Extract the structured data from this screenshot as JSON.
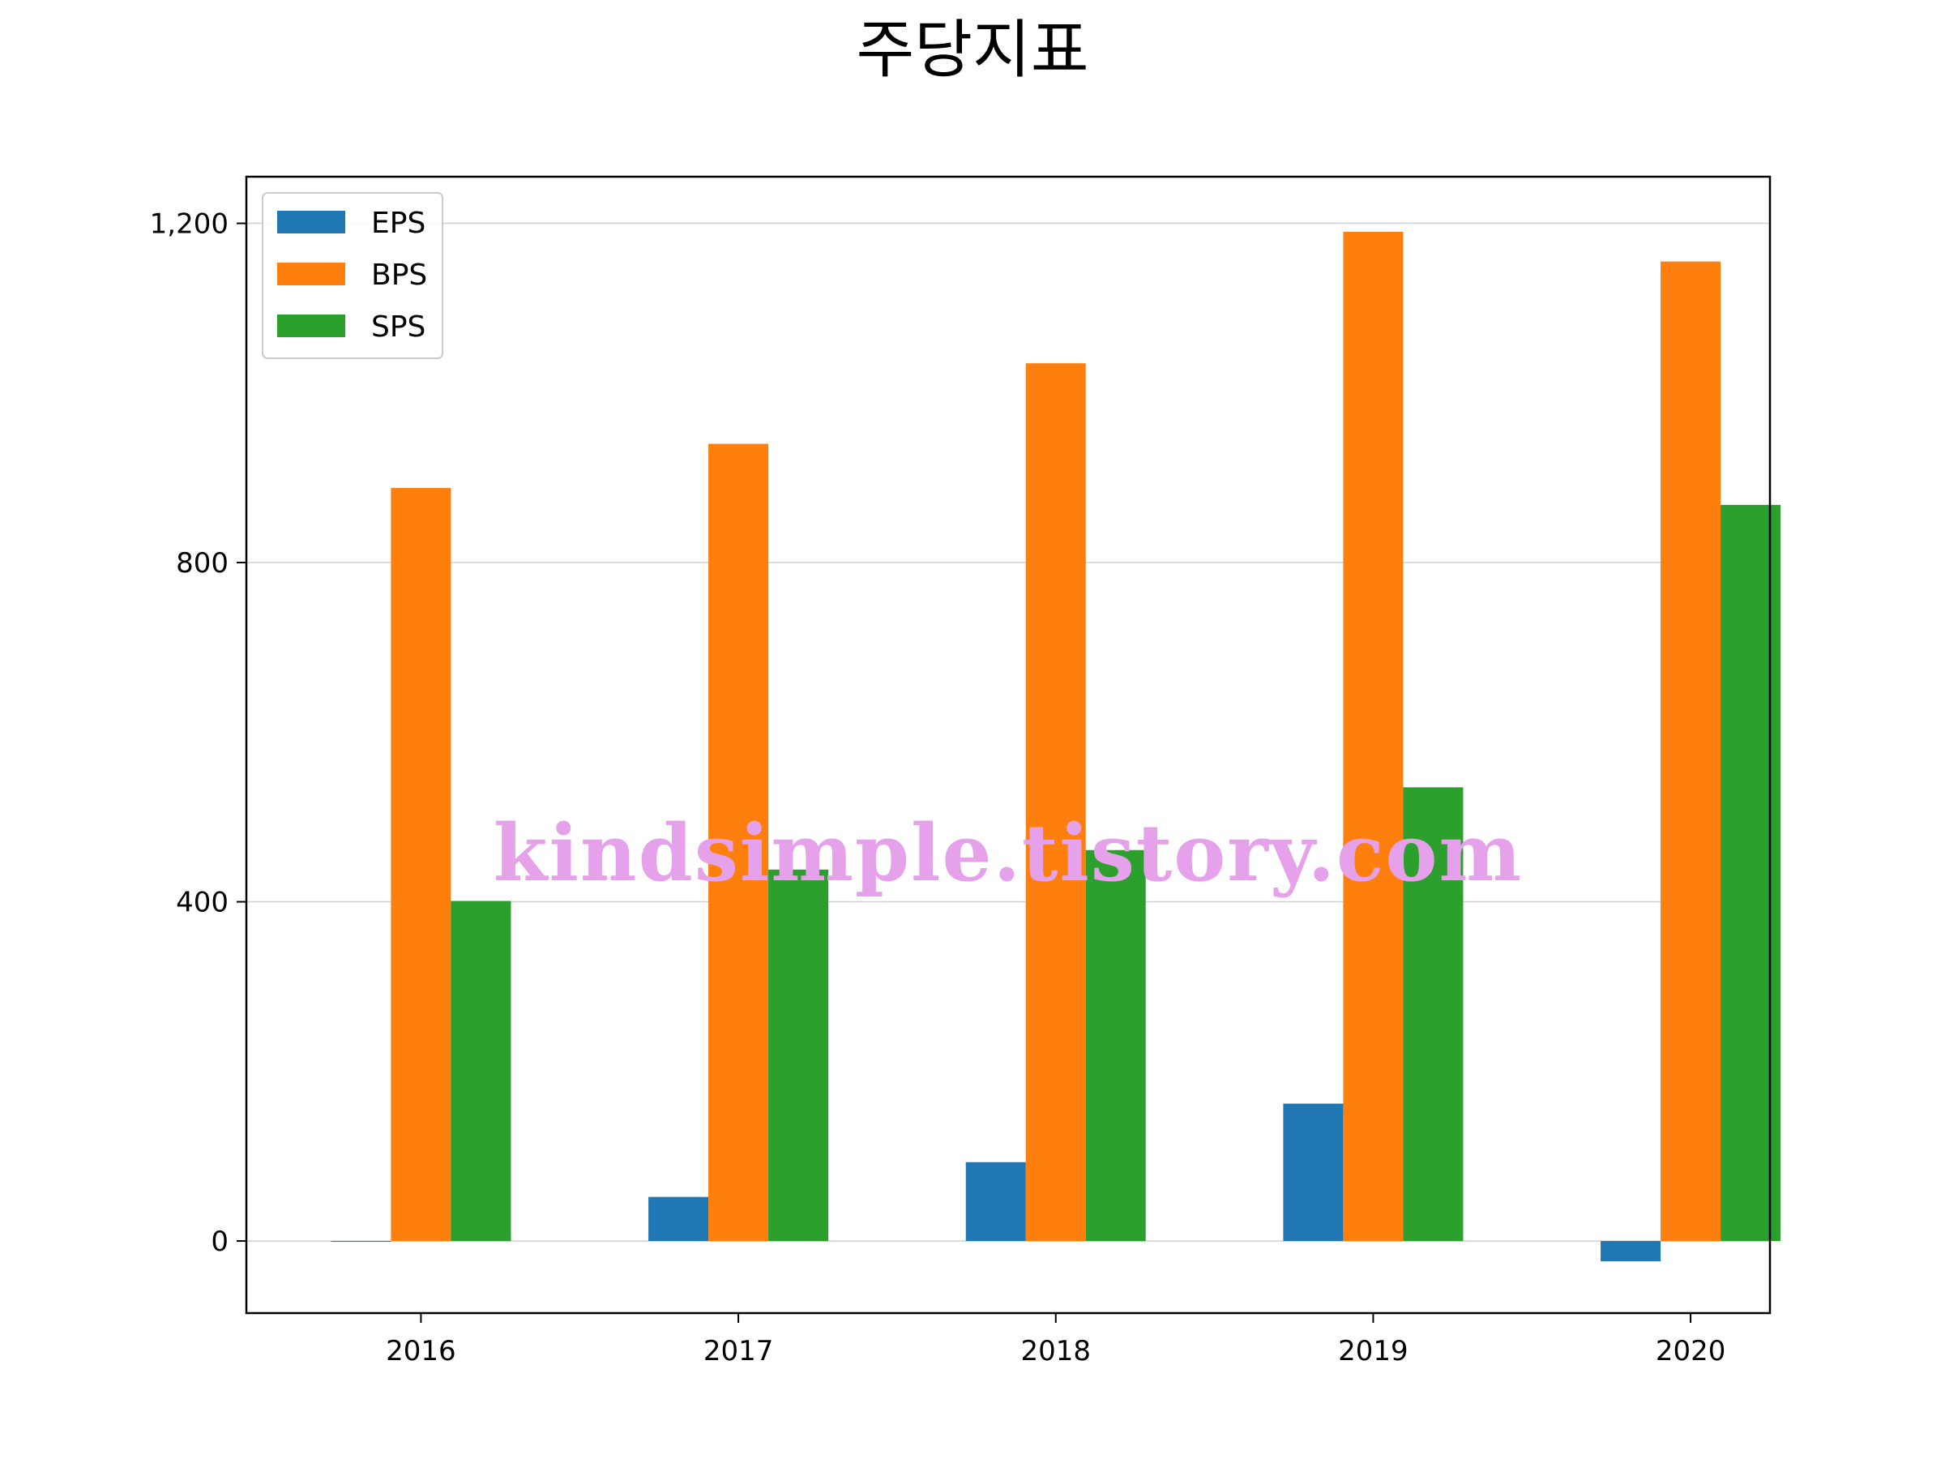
{
  "chart_data": {
    "type": "bar",
    "title": "주당지표",
    "xlabel": "",
    "ylabel": "",
    "categories": [
      "2016",
      "2017",
      "2018",
      "2019",
      "2020"
    ],
    "series": [
      {
        "name": "EPS",
        "color": "#1f77b4",
        "values": [
          0,
          52,
          93,
          162,
          -24
        ]
      },
      {
        "name": "BPS",
        "color": "#ff7f0e",
        "values": [
          888,
          940,
          1035,
          1190,
          1155
        ]
      },
      {
        "name": "SPS",
        "color": "#2ca02c",
        "values": [
          401,
          438,
          461,
          535,
          868
        ]
      }
    ],
    "ylim": [
      -85,
      1255
    ],
    "yticks": [
      0,
      400,
      800,
      1200
    ],
    "ytick_labels": [
      "0",
      "400",
      "800",
      "1,200"
    ],
    "grid": "horizontal",
    "legend": "top-left"
  },
  "watermark": "kindsimple.tistory.com"
}
